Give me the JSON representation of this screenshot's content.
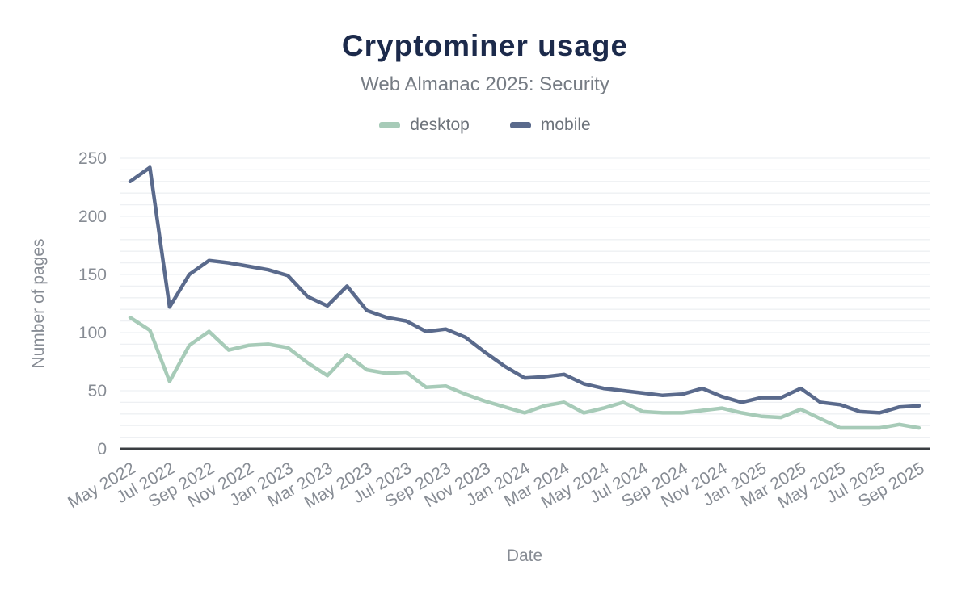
{
  "header": {
    "title": "Cryptominer usage",
    "subtitle": "Web Almanac 2025: Security"
  },
  "chart_data": {
    "type": "line",
    "title": "Cryptominer usage",
    "subtitle": "Web Almanac 2025: Security",
    "xlabel": "Date",
    "ylabel": "Number of pages",
    "ylim": [
      0,
      250
    ],
    "y_major_step": 50,
    "y_minor_step": 10,
    "x_tick_every": 2,
    "grid": "horizontal-only",
    "legend_position": "top",
    "categories": [
      "May 2022",
      "Jun 2022",
      "Jul 2022",
      "Aug 2022",
      "Sep 2022",
      "Oct 2022",
      "Nov 2022",
      "Dec 2022",
      "Jan 2023",
      "Feb 2023",
      "Mar 2023",
      "Apr 2023",
      "May 2023",
      "Jun 2023",
      "Jul 2023",
      "Aug 2023",
      "Sep 2023",
      "Oct 2023",
      "Nov 2023",
      "Dec 2023",
      "Jan 2024",
      "Feb 2024",
      "Mar 2024",
      "Apr 2024",
      "May 2024",
      "Jun 2024",
      "Jul 2024",
      "Aug 2024",
      "Sep 2024",
      "Oct 2024",
      "Nov 2024",
      "Dec 2024",
      "Jan 2025",
      "Feb 2025",
      "Mar 2025",
      "Apr 2025",
      "May 2025",
      "Jun 2025",
      "Jul 2025",
      "Aug 2025",
      "Sep 2025"
    ],
    "series": [
      {
        "name": "desktop",
        "color": "#a7cbb8",
        "values": [
          113,
          102,
          58,
          89,
          101,
          85,
          89,
          90,
          87,
          74,
          63,
          81,
          68,
          65,
          66,
          53,
          54,
          47,
          41,
          36,
          31,
          37,
          40,
          31,
          35,
          40,
          32,
          31,
          31,
          33,
          35,
          31,
          28,
          27,
          34,
          26,
          18,
          18,
          18,
          21,
          18
        ]
      },
      {
        "name": "mobile",
        "color": "#5a6a8c",
        "values": [
          230,
          242,
          122,
          150,
          162,
          160,
          157,
          154,
          149,
          131,
          123,
          140,
          119,
          113,
          110,
          101,
          103,
          96,
          83,
          71,
          61,
          62,
          64,
          56,
          52,
          50,
          48,
          46,
          47,
          52,
          45,
          40,
          44,
          44,
          52,
          40,
          38,
          32,
          31,
          36,
          37
        ]
      }
    ]
  },
  "colors": {
    "background": "#ffffff",
    "title": "#1c2a4b",
    "subtitle": "#767c84",
    "tick_labels": "#878c94",
    "axis_line": "#3a3e42",
    "gridline": "#eef0f3",
    "legend_text": "#6d737b"
  }
}
